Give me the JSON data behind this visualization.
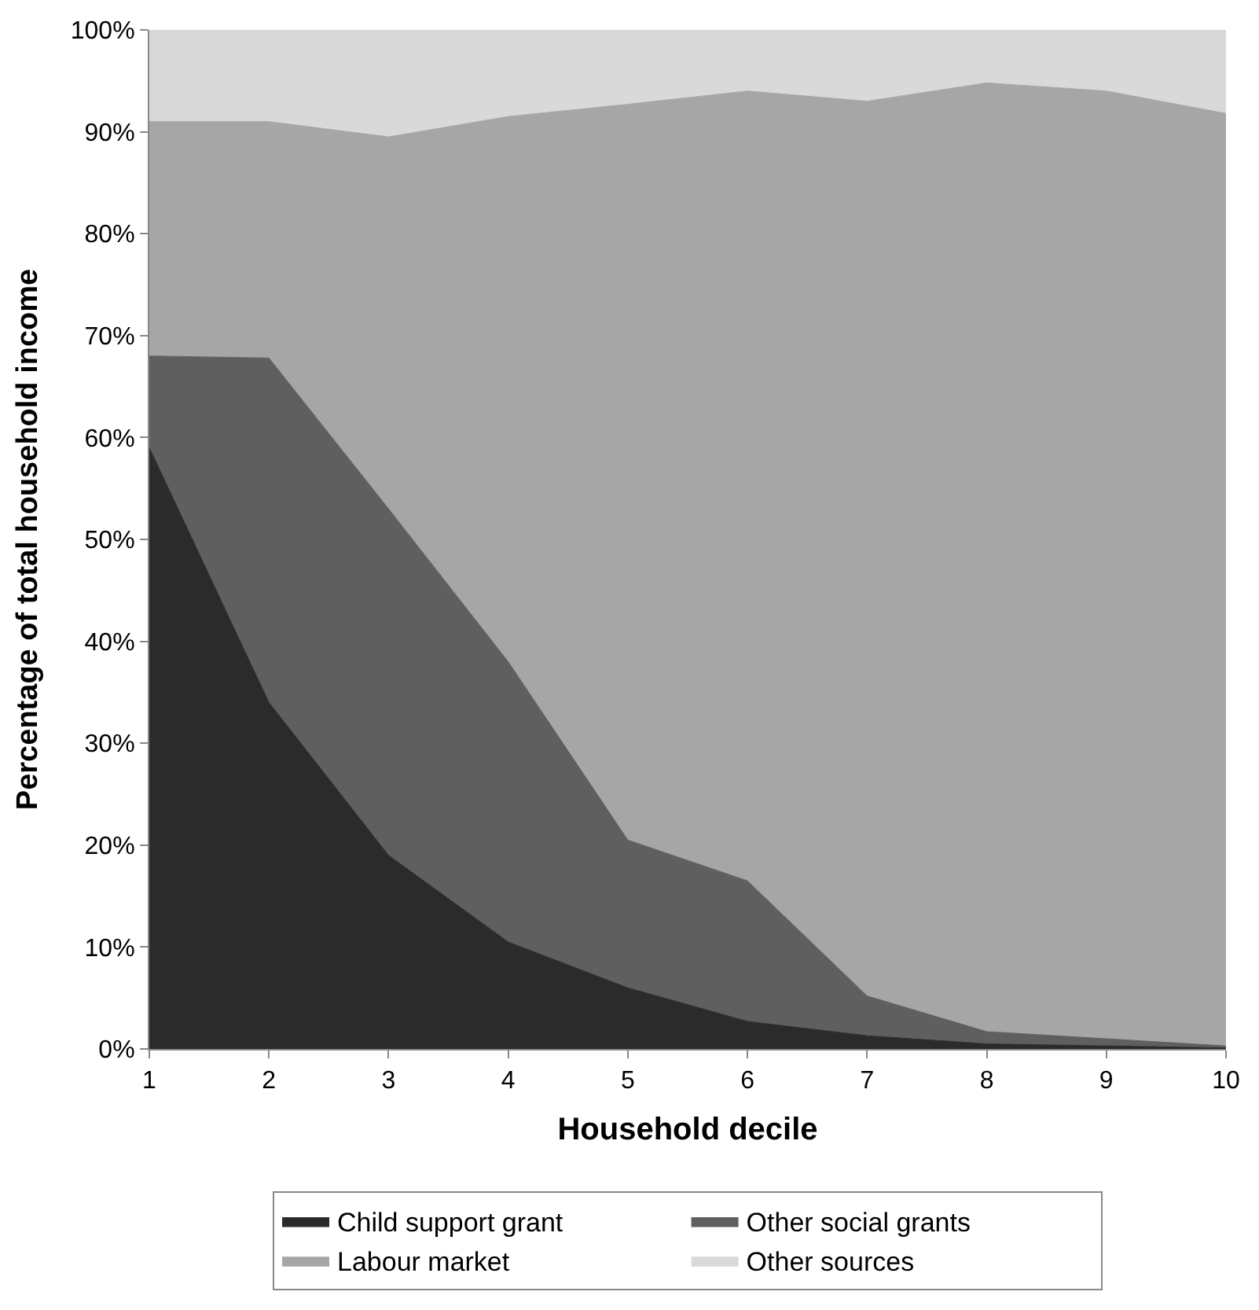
{
  "chart_data": {
    "type": "area",
    "stacked": true,
    "xlabel": "Household decile",
    "ylabel": "Percentage of total household income",
    "x": [
      1,
      2,
      3,
      4,
      5,
      6,
      7,
      8,
      9,
      10
    ],
    "xlim": [
      1,
      10
    ],
    "xticks": [
      1,
      2,
      3,
      4,
      5,
      6,
      7,
      8,
      9,
      10
    ],
    "ylim": [
      0,
      100
    ],
    "yticks": [
      {
        "value": 0,
        "label": "0%"
      },
      {
        "value": 10,
        "label": "10%"
      },
      {
        "value": 20,
        "label": "20%"
      },
      {
        "value": 30,
        "label": "30%"
      },
      {
        "value": 40,
        "label": "40%"
      },
      {
        "value": 50,
        "label": "50%"
      },
      {
        "value": 60,
        "label": "60%"
      },
      {
        "value": 70,
        "label": "70%"
      },
      {
        "value": 80,
        "label": "80%"
      },
      {
        "value": 90,
        "label": "90%"
      },
      {
        "value": 100,
        "label": "100%"
      }
    ],
    "legend": "bottom",
    "series": [
      {
        "name": "Child support grant",
        "color": "#2b2b2b",
        "values": [
          59,
          34,
          19,
          10.5,
          6,
          2.7,
          1.3,
          0.5,
          0.3,
          0.1
        ]
      },
      {
        "name": "Other social grants",
        "color": "#5f5f5f",
        "values": [
          9,
          33.8,
          34,
          27.5,
          14.5,
          13.8,
          3.9,
          1.2,
          0.7,
          0.2
        ]
      },
      {
        "name": "Labour market",
        "color": "#a6a6a6",
        "values": [
          23,
          23.2,
          36.5,
          53.5,
          72.2,
          77.5,
          87.8,
          93.1,
          93,
          91.5
        ]
      },
      {
        "name": "Other sources",
        "color": "#d9d9d9",
        "values": [
          9,
          9,
          10.5,
          8.5,
          7.3,
          6,
          7,
          5.2,
          6,
          8.2
        ]
      }
    ]
  }
}
